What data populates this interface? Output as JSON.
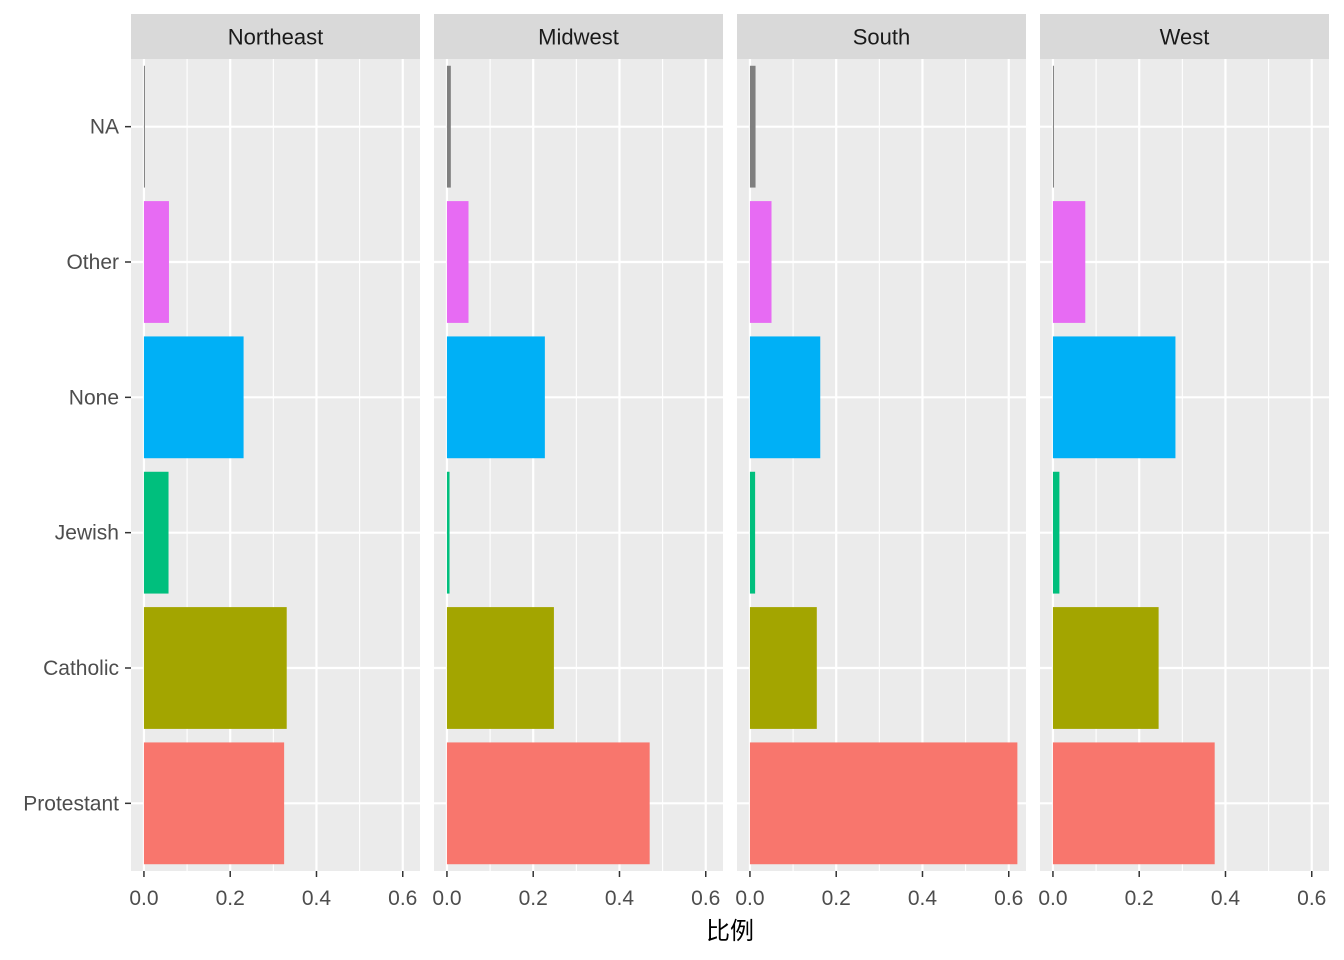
{
  "chart_data": {
    "type": "bar",
    "orientation": "horizontal",
    "facet_layout": "columns",
    "xlabel": "比例",
    "ylabel": "",
    "xlim": [
      -0.03,
      0.64
    ],
    "x_ticks": [
      0.0,
      0.2,
      0.4,
      0.6
    ],
    "x_tick_labels": [
      "0.0",
      "0.2",
      "0.4",
      "0.6"
    ],
    "categories": [
      "Protestant",
      "Catholic",
      "Jewish",
      "None",
      "Other",
      "NA"
    ],
    "category_colors": {
      "Protestant": "#F8766D",
      "Catholic": "#A3A500",
      "Jewish": "#00BF7D",
      "None": "#00B0F6",
      "Other": "#E76BF3",
      "NA": "#7F7F7F"
    },
    "grid": true,
    "panel_background": "#EBEBEB",
    "strip_background": "#D9D9D9",
    "legend": "none",
    "facets": [
      {
        "name": "Northeast",
        "values": [
          0.325,
          0.331,
          0.057,
          0.231,
          0.058,
          0.002
        ]
      },
      {
        "name": "Midwest",
        "values": [
          0.47,
          0.248,
          0.006,
          0.227,
          0.05,
          0.009
        ]
      },
      {
        "name": "South",
        "values": [
          0.62,
          0.155,
          0.012,
          0.163,
          0.05,
          0.013
        ]
      },
      {
        "name": "West",
        "values": [
          0.375,
          0.245,
          0.015,
          0.284,
          0.075,
          0.002
        ]
      }
    ]
  }
}
